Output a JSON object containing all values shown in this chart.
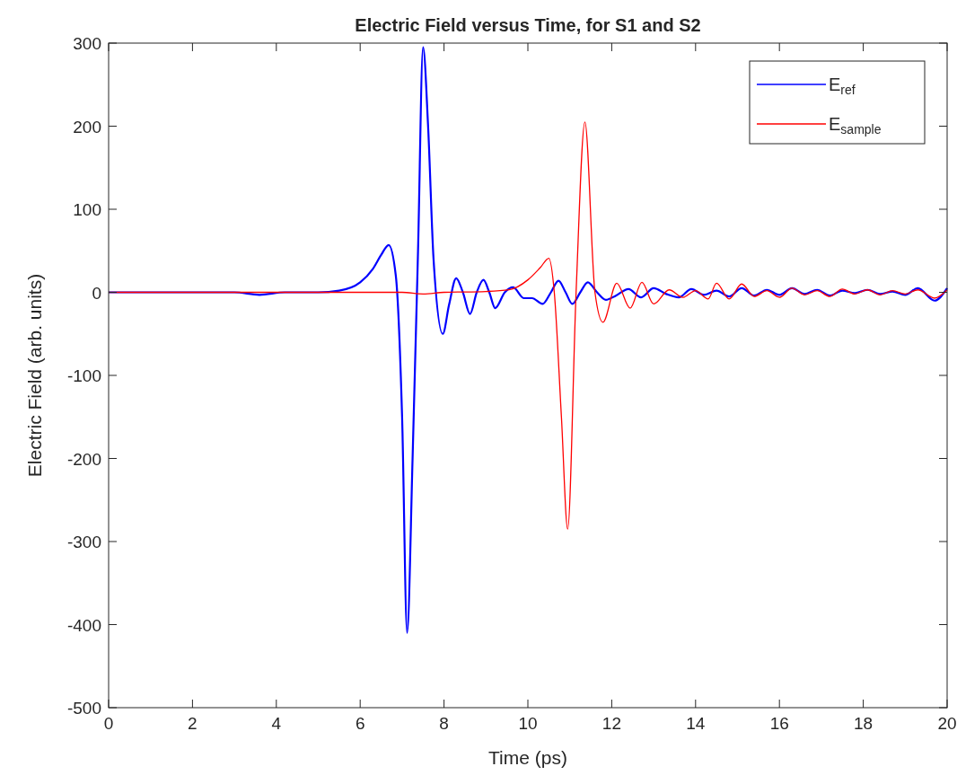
{
  "chart_data": {
    "type": "line",
    "title": "Electric Field versus Time, for S1 and S2",
    "xlabel": "Time (ps)",
    "ylabel": "Electric Field (arb. units)",
    "xlim": [
      0,
      20
    ],
    "ylim": [
      -500,
      300
    ],
    "xticks": [
      0,
      2,
      4,
      6,
      8,
      10,
      12,
      14,
      16,
      18,
      20
    ],
    "yticks": [
      -500,
      -400,
      -300,
      -200,
      -100,
      0,
      100,
      200,
      300
    ],
    "grid": false,
    "legend": "top right",
    "line_style": "solid",
    "marker": "none",
    "series": [
      {
        "name": "E$_{ref}$",
        "color": "#0000ff",
        "x": [
          0,
          3,
          3.6,
          4.2,
          5,
          5.5,
          6,
          6.3,
          6.5,
          6.68,
          6.85,
          7,
          7.12,
          7.25,
          7.38,
          7.5,
          7.62,
          7.75,
          7.97,
          8.12,
          8.29,
          8.45,
          8.62,
          8.78,
          8.94,
          9.08,
          9.22,
          9.45,
          9.65,
          9.9,
          10.1,
          10.35,
          10.55,
          10.73,
          10.9,
          11.06,
          11.25,
          11.43,
          11.65,
          11.86,
          12.1,
          12.4,
          12.7,
          13,
          13.3,
          13.6,
          13.9,
          14.2,
          14.5,
          14.8,
          15.1,
          15.4,
          15.7,
          16,
          16.3,
          16.6,
          16.9,
          17.2,
          17.5,
          17.8,
          18.1,
          18.4,
          18.7,
          19,
          19.3,
          19.7,
          20
        ],
        "values": [
          0,
          0,
          -3,
          0,
          0,
          2,
          12,
          28,
          45,
          57,
          20,
          -150,
          -410,
          -200,
          50,
          295,
          200,
          40,
          -50,
          -15,
          17,
          0,
          -26,
          0,
          15,
          0,
          -19,
          0,
          6,
          -7,
          -7,
          -14,
          0,
          14,
          0,
          -14,
          0,
          12,
          0,
          -9,
          -4,
          4,
          -6,
          5,
          -2,
          -6,
          4,
          -3,
          2,
          -5,
          5,
          -4,
          3,
          -3,
          5,
          -2,
          3,
          -4,
          2,
          -1,
          3,
          -2,
          1,
          -3,
          5,
          -10,
          5
        ]
      },
      {
        "name": "E$_{sample}$",
        "color": "#ff0000",
        "x": [
          0,
          4,
          6,
          7,
          7.5,
          8,
          9,
          9.55,
          10,
          10.3,
          10.5,
          10.63,
          10.8,
          10.95,
          11.15,
          11.36,
          11.6,
          11.79,
          12.12,
          12.44,
          12.72,
          13,
          13.37,
          13.7,
          14,
          14.3,
          14.5,
          14.8,
          15.1,
          15.4,
          15.7,
          16,
          16.3,
          16.6,
          16.9,
          17.2,
          17.5,
          17.8,
          18.1,
          18.4,
          18.7,
          19,
          19.3,
          19.7,
          20
        ],
        "values": [
          0,
          0,
          0,
          0,
          -2,
          0,
          1,
          3,
          15,
          30,
          41,
          0,
          -150,
          -285,
          0,
          205,
          0,
          -36,
          11,
          -19,
          12,
          -14,
          3,
          -6,
          2,
          -8,
          11,
          -8,
          10,
          -5,
          2,
          -6,
          5,
          -3,
          2,
          -5,
          4,
          -2,
          3,
          -3,
          2,
          -2,
          3,
          -7,
          3
        ]
      }
    ]
  }
}
